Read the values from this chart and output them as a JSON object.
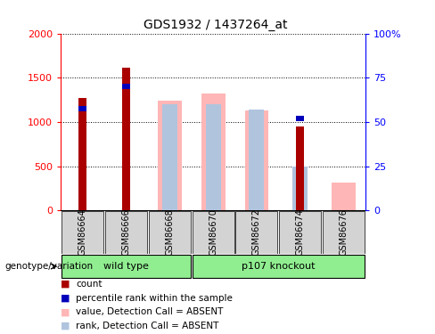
{
  "title": "GDS1932 / 1437264_at",
  "samples": [
    "GSM86664",
    "GSM86666",
    "GSM86668",
    "GSM86670",
    "GSM86672",
    "GSM86674",
    "GSM86676"
  ],
  "count_values": [
    1270,
    1610,
    null,
    null,
    null,
    950,
    null
  ],
  "percentile_values": [
    1175,
    1430,
    null,
    null,
    null,
    1070,
    null
  ],
  "absent_value_values": [
    null,
    null,
    1240,
    1320,
    1130,
    null,
    310
  ],
  "absent_rank_values": [
    null,
    null,
    60,
    60,
    57,
    25,
    null
  ],
  "ylim_left": [
    0,
    2000
  ],
  "ylim_right": [
    0,
    100
  ],
  "yticks_left": [
    0,
    500,
    1000,
    1500,
    2000
  ],
  "yticks_right": [
    0,
    25,
    50,
    75,
    100
  ],
  "color_count": "#AA0000",
  "color_percentile": "#0000BB",
  "color_absent_value": "#FFB6B6",
  "color_absent_rank": "#B0C4DE",
  "label_count": "count",
  "label_percentile": "percentile rank within the sample",
  "label_absent_value": "value, Detection Call = ABSENT",
  "label_absent_rank": "rank, Detection Call = ABSENT",
  "genotype_label": "genotype/variation",
  "wildtype_label": "wild type",
  "knockout_label": "p107 knockout",
  "green_color": "#90EE90",
  "gray_color": "#D3D3D3",
  "n_wild": 3,
  "n_knockout": 4
}
